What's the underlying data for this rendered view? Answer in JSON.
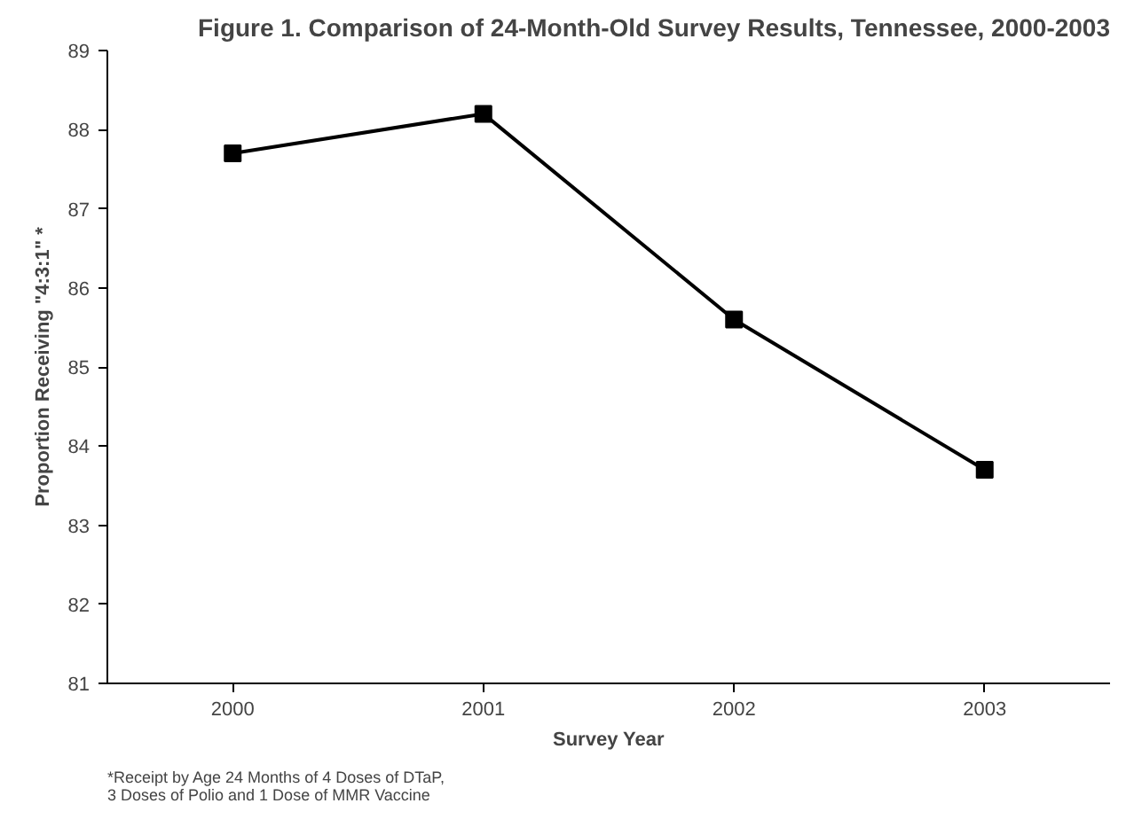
{
  "chart_data": {
    "type": "line",
    "title": "Figure 1. Comparison of 24-Month-Old Survey Results, Tennessee, 2000-2003",
    "xlabel": "Survey Year",
    "ylabel": "Proportion Receiving \"4:3:1\" *",
    "categories": [
      "2000",
      "2001",
      "2002",
      "2003"
    ],
    "series": [
      {
        "color": "#000000",
        "values": [
          87.7,
          88.2,
          85.6,
          83.7
        ]
      }
    ],
    "ylim": [
      81,
      89
    ],
    "yticks": [
      81,
      82,
      83,
      84,
      85,
      86,
      87,
      88,
      89
    ],
    "grid": false,
    "marker": "square",
    "line_style": "solid",
    "annotations": [
      "*Receipt by Age 24 Months of 4 Doses of DTaP, 3 Doses of Polio and 1 Dose of MMR Vaccine"
    ]
  }
}
